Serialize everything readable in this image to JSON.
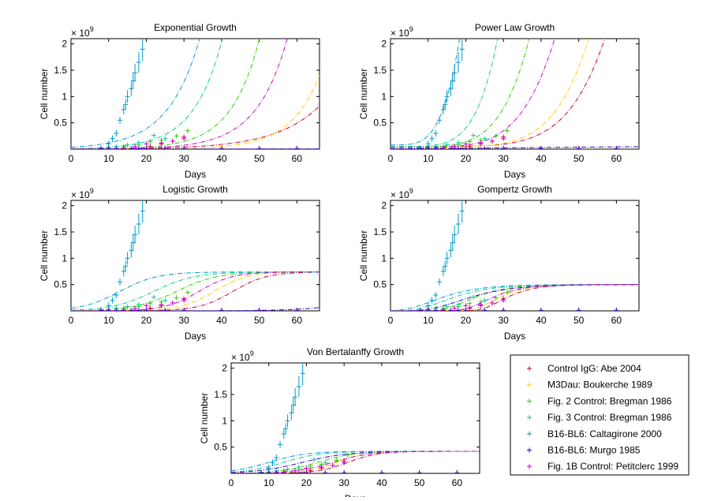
{
  "chart_data": {
    "type": "line",
    "figure": "Tumor growth model fits to experimental data",
    "xlabel": "Days",
    "ylabel": "Cell number",
    "y_multiplier_label": "× 10^9",
    "xlim": [
      0,
      66
    ],
    "ylim": [
      0,
      2.1
    ],
    "xticks": [
      "0",
      "10",
      "20",
      "30",
      "40",
      "50",
      "60"
    ],
    "yticks": [
      "0.5",
      "1",
      "1.5",
      "2"
    ],
    "legend": [
      {
        "label": "Control IgG: Abe 2004",
        "color": "#cc0033"
      },
      {
        "label": "M3Dau: Boukerche 1989",
        "color": "#ffcc00"
      },
      {
        "label": "Fig. 2 Control: Bregman 1986",
        "color": "#33cc00"
      },
      {
        "label": "Fig. 3 Control: Bregman 1986",
        "color": "#00cc99"
      },
      {
        "label": "B16-BL6: Caltagirone 2000",
        "color": "#0099cc"
      },
      {
        "label": "B16-BL6: Murgo 1985",
        "color": "#3300cc"
      },
      {
        "label": "Fig. 1B Control: Petitclerc 1999",
        "color": "#cc00cc"
      }
    ],
    "data_points": [
      {
        "name": "Control IgG: Abe 2004",
        "x": [
          21,
          24,
          27,
          30
        ],
        "y": [
          0.05,
          0.1,
          0.15,
          0.23
        ]
      },
      {
        "name": "M3Dau: Boukerche 1989",
        "x": [
          10,
          15,
          20,
          25,
          30,
          40,
          50,
          60
        ],
        "y": [
          0.01,
          0.01,
          0.01,
          0.01,
          0.01,
          0.01,
          0.01,
          0.01
        ]
      },
      {
        "name": "Fig. 2 Control: Bregman 1986",
        "x": [
          10,
          14,
          18,
          21,
          24,
          28,
          31
        ],
        "y": [
          0.02,
          0.05,
          0.08,
          0.14,
          0.17,
          0.25,
          0.35
        ]
      },
      {
        "name": "Fig. 3 Control: Bregman 1986",
        "x": [
          8,
          12,
          15,
          18,
          22,
          25
        ],
        "y": [
          0.02,
          0.05,
          0.08,
          0.12,
          0.26,
          0.2
        ]
      },
      {
        "name": "B16-BL6: Caltagirone 2000",
        "x": [
          10,
          11,
          12,
          13,
          14,
          14.5,
          15,
          16,
          16.5,
          17,
          18,
          19
        ],
        "y": [
          0.1,
          0.2,
          0.3,
          0.55,
          0.75,
          0.85,
          1.0,
          1.15,
          1.3,
          1.45,
          1.65,
          1.9
        ]
      },
      {
        "name": "B16-BL6: Murgo 1985",
        "x": [
          8,
          10,
          12,
          14,
          16,
          18,
          20,
          25,
          30,
          40,
          50,
          60
        ],
        "y": [
          0.01,
          0.01,
          0.01,
          0.01,
          0.01,
          0.01,
          0.01,
          0.01,
          0.01,
          0.01,
          0.01,
          0.01
        ]
      },
      {
        "name": "Fig. 1B Control: Petitclerc 1999",
        "x": [
          14,
          17,
          20,
          24,
          27,
          30
        ],
        "y": [
          0.02,
          0.05,
          0.1,
          0.12,
          0.15,
          0.2
        ]
      }
    ],
    "panels": [
      {
        "title": "Exponential Growth",
        "model": "exp",
        "curves": [
          {
            "name": "Control IgG: Abe 2004",
            "a": 0.003,
            "r": 0.085
          },
          {
            "name": "M3Dau: Boukerche 1989",
            "a": 0.0003,
            "r": 0.128
          },
          {
            "name": "Fig. 2 Control: Bregman 1986",
            "a": 0.0027,
            "r": 0.133
          },
          {
            "name": "Fig. 3 Control: Bregman 1986",
            "a": 0.01,
            "r": 0.133
          },
          {
            "name": "B16-BL6: Caltagirone 2000",
            "a": 0.036,
            "r": 0.119
          },
          {
            "name": "B16-BL6: Murgo 1985",
            "a": 0.0005,
            "r": 0.03
          },
          {
            "name": "Fig. 1B Control: Petitclerc 1999",
            "a": 0.0019,
            "r": 0.122
          }
        ]
      },
      {
        "title": "Power Law Growth",
        "model": "power",
        "curves": [
          {
            "name": "Control IgG: Abe 2004",
            "a": 0.05,
            "xmax": 66,
            "p": 6
          },
          {
            "name": "M3Dau: Boukerche 1989",
            "a": 0.04,
            "xmax": 61,
            "p": 6
          },
          {
            "name": "Fig. 2 Control: Bregman 1986",
            "a": 0.04,
            "xmax": 44,
            "p": 5
          },
          {
            "name": "Fig. 3 Control: Bregman 1986",
            "a": 0.05,
            "xmax": 34,
            "p": 5
          },
          {
            "name": "B16-BL6: Caltagirone 2000",
            "a": 0.08,
            "xmax": 23,
            "p": 4
          },
          {
            "name": "B16-BL6: Murgo 1985",
            "a": 0.005,
            "xmax": 400,
            "p": 1
          },
          {
            "name": "Fig. 1B Control: Petitclerc 1999",
            "a": 0.03,
            "xmax": 52,
            "p": 5
          }
        ]
      },
      {
        "title": "Logistic Growth",
        "model": "logistic",
        "curves": [
          {
            "name": "Control IgG: Abe 2004",
            "K": 0.74,
            "x0": 43,
            "s": 4.5
          },
          {
            "name": "M3Dau: Boukerche 1989",
            "K": 0.74,
            "x0": 38,
            "s": 4.5
          },
          {
            "name": "Fig. 2 Control: Bregman 1986",
            "K": 0.74,
            "x0": 28,
            "s": 5.5
          },
          {
            "name": "Fig. 3 Control: Bregman 1986",
            "K": 0.74,
            "x0": 22,
            "s": 5.5
          },
          {
            "name": "B16-BL6: Caltagirone 2000",
            "K": 0.74,
            "x0": 13,
            "s": 5
          },
          {
            "name": "B16-BL6: Murgo 1985",
            "K": 0.74,
            "x0": 85,
            "s": 8
          },
          {
            "name": "Fig. 1B Control: Petitclerc 1999",
            "K": 0.74,
            "x0": 34,
            "s": 4.5
          }
        ]
      },
      {
        "title": "Gompertz Growth",
        "model": "gompertz",
        "curves": [
          {
            "name": "Control IgG: Abe 2004",
            "K": 0.5,
            "x0": 29,
            "s": 5
          },
          {
            "name": "M3Dau: Boukerche 1989",
            "K": 0.5,
            "x0": 27,
            "s": 5
          },
          {
            "name": "Fig. 2 Control: Bregman 1986",
            "K": 0.5,
            "x0": 20,
            "s": 6
          },
          {
            "name": "Fig. 3 Control: Bregman 1986",
            "K": 0.5,
            "x0": 14,
            "s": 7
          },
          {
            "name": "B16-BL6: Caltagirone 2000",
            "K": 0.5,
            "x0": 11,
            "s": 7
          },
          {
            "name": "B16-BL6: Murgo 1985",
            "K": 0.5,
            "x0": 18,
            "s": 8
          },
          {
            "name": "Fig. 1B Control: Petitclerc 1999",
            "K": 0.5,
            "x0": 25,
            "s": 5.5
          }
        ]
      },
      {
        "title": "Von Bertalanffy Growth",
        "model": "vonbert",
        "curves": [
          {
            "name": "Control IgG: Abe 2004",
            "K": 0.42,
            "x0": 31,
            "s": 4
          },
          {
            "name": "M3Dau: Boukerche 1989",
            "K": 0.42,
            "x0": 28,
            "s": 4
          },
          {
            "name": "Fig. 2 Control: Bregman 1986",
            "K": 0.42,
            "x0": 23,
            "s": 5
          },
          {
            "name": "Fig. 3 Control: Bregman 1986",
            "K": 0.42,
            "x0": 14,
            "s": 5
          },
          {
            "name": "B16-BL6: Caltagirone 2000",
            "K": 0.42,
            "x0": 10,
            "s": 5
          },
          {
            "name": "B16-BL6: Murgo 1985",
            "K": 0.42,
            "x0": 19,
            "s": 6
          },
          {
            "name": "Fig. 1B Control: Petitclerc 1999",
            "K": 0.42,
            "x0": 27,
            "s": 5
          }
        ]
      }
    ]
  }
}
